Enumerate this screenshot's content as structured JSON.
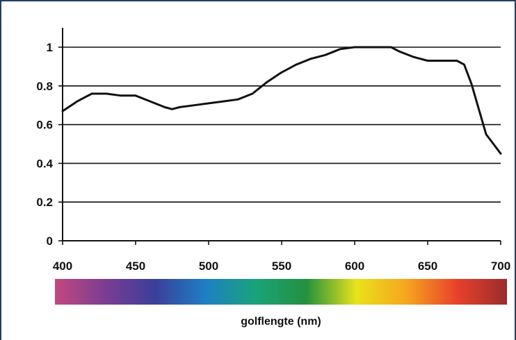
{
  "chart_data": {
    "type": "line",
    "title": "",
    "xlabel": "golflengte (nm)",
    "ylabel": "",
    "xlim": [
      400,
      700
    ],
    "ylim": [
      0,
      1
    ],
    "x_ticks": [
      "400",
      "450",
      "500",
      "550",
      "600",
      "650",
      "700"
    ],
    "y_ticks": [
      "0",
      "0.2",
      "0.4",
      "0.6",
      "0.8",
      "1"
    ],
    "grid": "horizontal",
    "series": [
      {
        "color": "#111111",
        "x": [
          400,
          410,
          420,
          430,
          440,
          450,
          460,
          470,
          475,
          480,
          490,
          500,
          510,
          520,
          530,
          540,
          550,
          560,
          570,
          580,
          590,
          600,
          610,
          620,
          625,
          630,
          640,
          650,
          660,
          670,
          675,
          680,
          690,
          700
        ],
        "y": [
          0.67,
          0.72,
          0.76,
          0.76,
          0.75,
          0.75,
          0.72,
          0.69,
          0.68,
          0.69,
          0.7,
          0.71,
          0.72,
          0.73,
          0.76,
          0.82,
          0.87,
          0.91,
          0.94,
          0.96,
          0.99,
          1.0,
          1.0,
          1.0,
          1.0,
          0.98,
          0.95,
          0.93,
          0.93,
          0.93,
          0.91,
          0.81,
          0.55,
          0.45
        ]
      }
    ],
    "spectrum_bar": {
      "colors": [
        "#c2487e",
        "#7b3d93",
        "#3a3f9a",
        "#1e7fc4",
        "#1aa37a",
        "#23913e",
        "#e8e21a",
        "#f5a51e",
        "#e8412b",
        "#9a2c2c"
      ]
    }
  }
}
